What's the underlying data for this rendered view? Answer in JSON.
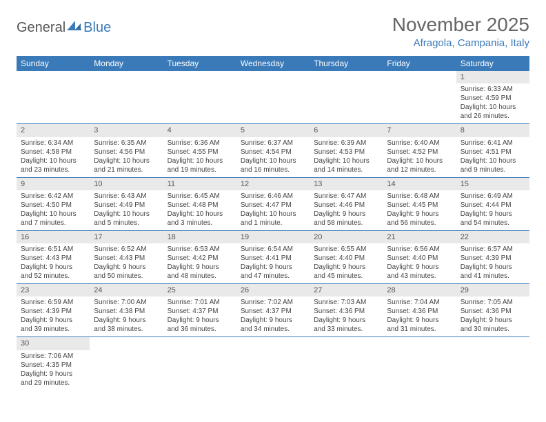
{
  "logo": {
    "part1": "General",
    "part2": "Blue",
    "color1": "#555555",
    "color2": "#3a7ab8"
  },
  "title": "November 2025",
  "location": "Afragola, Campania, Italy",
  "header_bg": "#3a7ab8",
  "header_fg": "#ffffff",
  "daynum_bg": "#e9e9e9",
  "cell_border": "#3a7ab8",
  "days_of_week": [
    "Sunday",
    "Monday",
    "Tuesday",
    "Wednesday",
    "Thursday",
    "Friday",
    "Saturday"
  ],
  "weeks": [
    [
      null,
      null,
      null,
      null,
      null,
      null,
      {
        "n": "1",
        "sr": "6:33 AM",
        "ss": "4:59 PM",
        "dl": "10 hours and 26 minutes."
      }
    ],
    [
      {
        "n": "2",
        "sr": "6:34 AM",
        "ss": "4:58 PM",
        "dl": "10 hours and 23 minutes."
      },
      {
        "n": "3",
        "sr": "6:35 AM",
        "ss": "4:56 PM",
        "dl": "10 hours and 21 minutes."
      },
      {
        "n": "4",
        "sr": "6:36 AM",
        "ss": "4:55 PM",
        "dl": "10 hours and 19 minutes."
      },
      {
        "n": "5",
        "sr": "6:37 AM",
        "ss": "4:54 PM",
        "dl": "10 hours and 16 minutes."
      },
      {
        "n": "6",
        "sr": "6:39 AM",
        "ss": "4:53 PM",
        "dl": "10 hours and 14 minutes."
      },
      {
        "n": "7",
        "sr": "6:40 AM",
        "ss": "4:52 PM",
        "dl": "10 hours and 12 minutes."
      },
      {
        "n": "8",
        "sr": "6:41 AM",
        "ss": "4:51 PM",
        "dl": "10 hours and 9 minutes."
      }
    ],
    [
      {
        "n": "9",
        "sr": "6:42 AM",
        "ss": "4:50 PM",
        "dl": "10 hours and 7 minutes."
      },
      {
        "n": "10",
        "sr": "6:43 AM",
        "ss": "4:49 PM",
        "dl": "10 hours and 5 minutes."
      },
      {
        "n": "11",
        "sr": "6:45 AM",
        "ss": "4:48 PM",
        "dl": "10 hours and 3 minutes."
      },
      {
        "n": "12",
        "sr": "6:46 AM",
        "ss": "4:47 PM",
        "dl": "10 hours and 1 minute."
      },
      {
        "n": "13",
        "sr": "6:47 AM",
        "ss": "4:46 PM",
        "dl": "9 hours and 58 minutes."
      },
      {
        "n": "14",
        "sr": "6:48 AM",
        "ss": "4:45 PM",
        "dl": "9 hours and 56 minutes."
      },
      {
        "n": "15",
        "sr": "6:49 AM",
        "ss": "4:44 PM",
        "dl": "9 hours and 54 minutes."
      }
    ],
    [
      {
        "n": "16",
        "sr": "6:51 AM",
        "ss": "4:43 PM",
        "dl": "9 hours and 52 minutes."
      },
      {
        "n": "17",
        "sr": "6:52 AM",
        "ss": "4:43 PM",
        "dl": "9 hours and 50 minutes."
      },
      {
        "n": "18",
        "sr": "6:53 AM",
        "ss": "4:42 PM",
        "dl": "9 hours and 48 minutes."
      },
      {
        "n": "19",
        "sr": "6:54 AM",
        "ss": "4:41 PM",
        "dl": "9 hours and 47 minutes."
      },
      {
        "n": "20",
        "sr": "6:55 AM",
        "ss": "4:40 PM",
        "dl": "9 hours and 45 minutes."
      },
      {
        "n": "21",
        "sr": "6:56 AM",
        "ss": "4:40 PM",
        "dl": "9 hours and 43 minutes."
      },
      {
        "n": "22",
        "sr": "6:57 AM",
        "ss": "4:39 PM",
        "dl": "9 hours and 41 minutes."
      }
    ],
    [
      {
        "n": "23",
        "sr": "6:59 AM",
        "ss": "4:39 PM",
        "dl": "9 hours and 39 minutes."
      },
      {
        "n": "24",
        "sr": "7:00 AM",
        "ss": "4:38 PM",
        "dl": "9 hours and 38 minutes."
      },
      {
        "n": "25",
        "sr": "7:01 AM",
        "ss": "4:37 PM",
        "dl": "9 hours and 36 minutes."
      },
      {
        "n": "26",
        "sr": "7:02 AM",
        "ss": "4:37 PM",
        "dl": "9 hours and 34 minutes."
      },
      {
        "n": "27",
        "sr": "7:03 AM",
        "ss": "4:36 PM",
        "dl": "9 hours and 33 minutes."
      },
      {
        "n": "28",
        "sr": "7:04 AM",
        "ss": "4:36 PM",
        "dl": "9 hours and 31 minutes."
      },
      {
        "n": "29",
        "sr": "7:05 AM",
        "ss": "4:36 PM",
        "dl": "9 hours and 30 minutes."
      }
    ],
    [
      {
        "n": "30",
        "sr": "7:06 AM",
        "ss": "4:35 PM",
        "dl": "9 hours and 29 minutes."
      },
      null,
      null,
      null,
      null,
      null,
      null
    ]
  ],
  "labels": {
    "sunrise": "Sunrise: ",
    "sunset": "Sunset: ",
    "daylight": "Daylight: "
  }
}
